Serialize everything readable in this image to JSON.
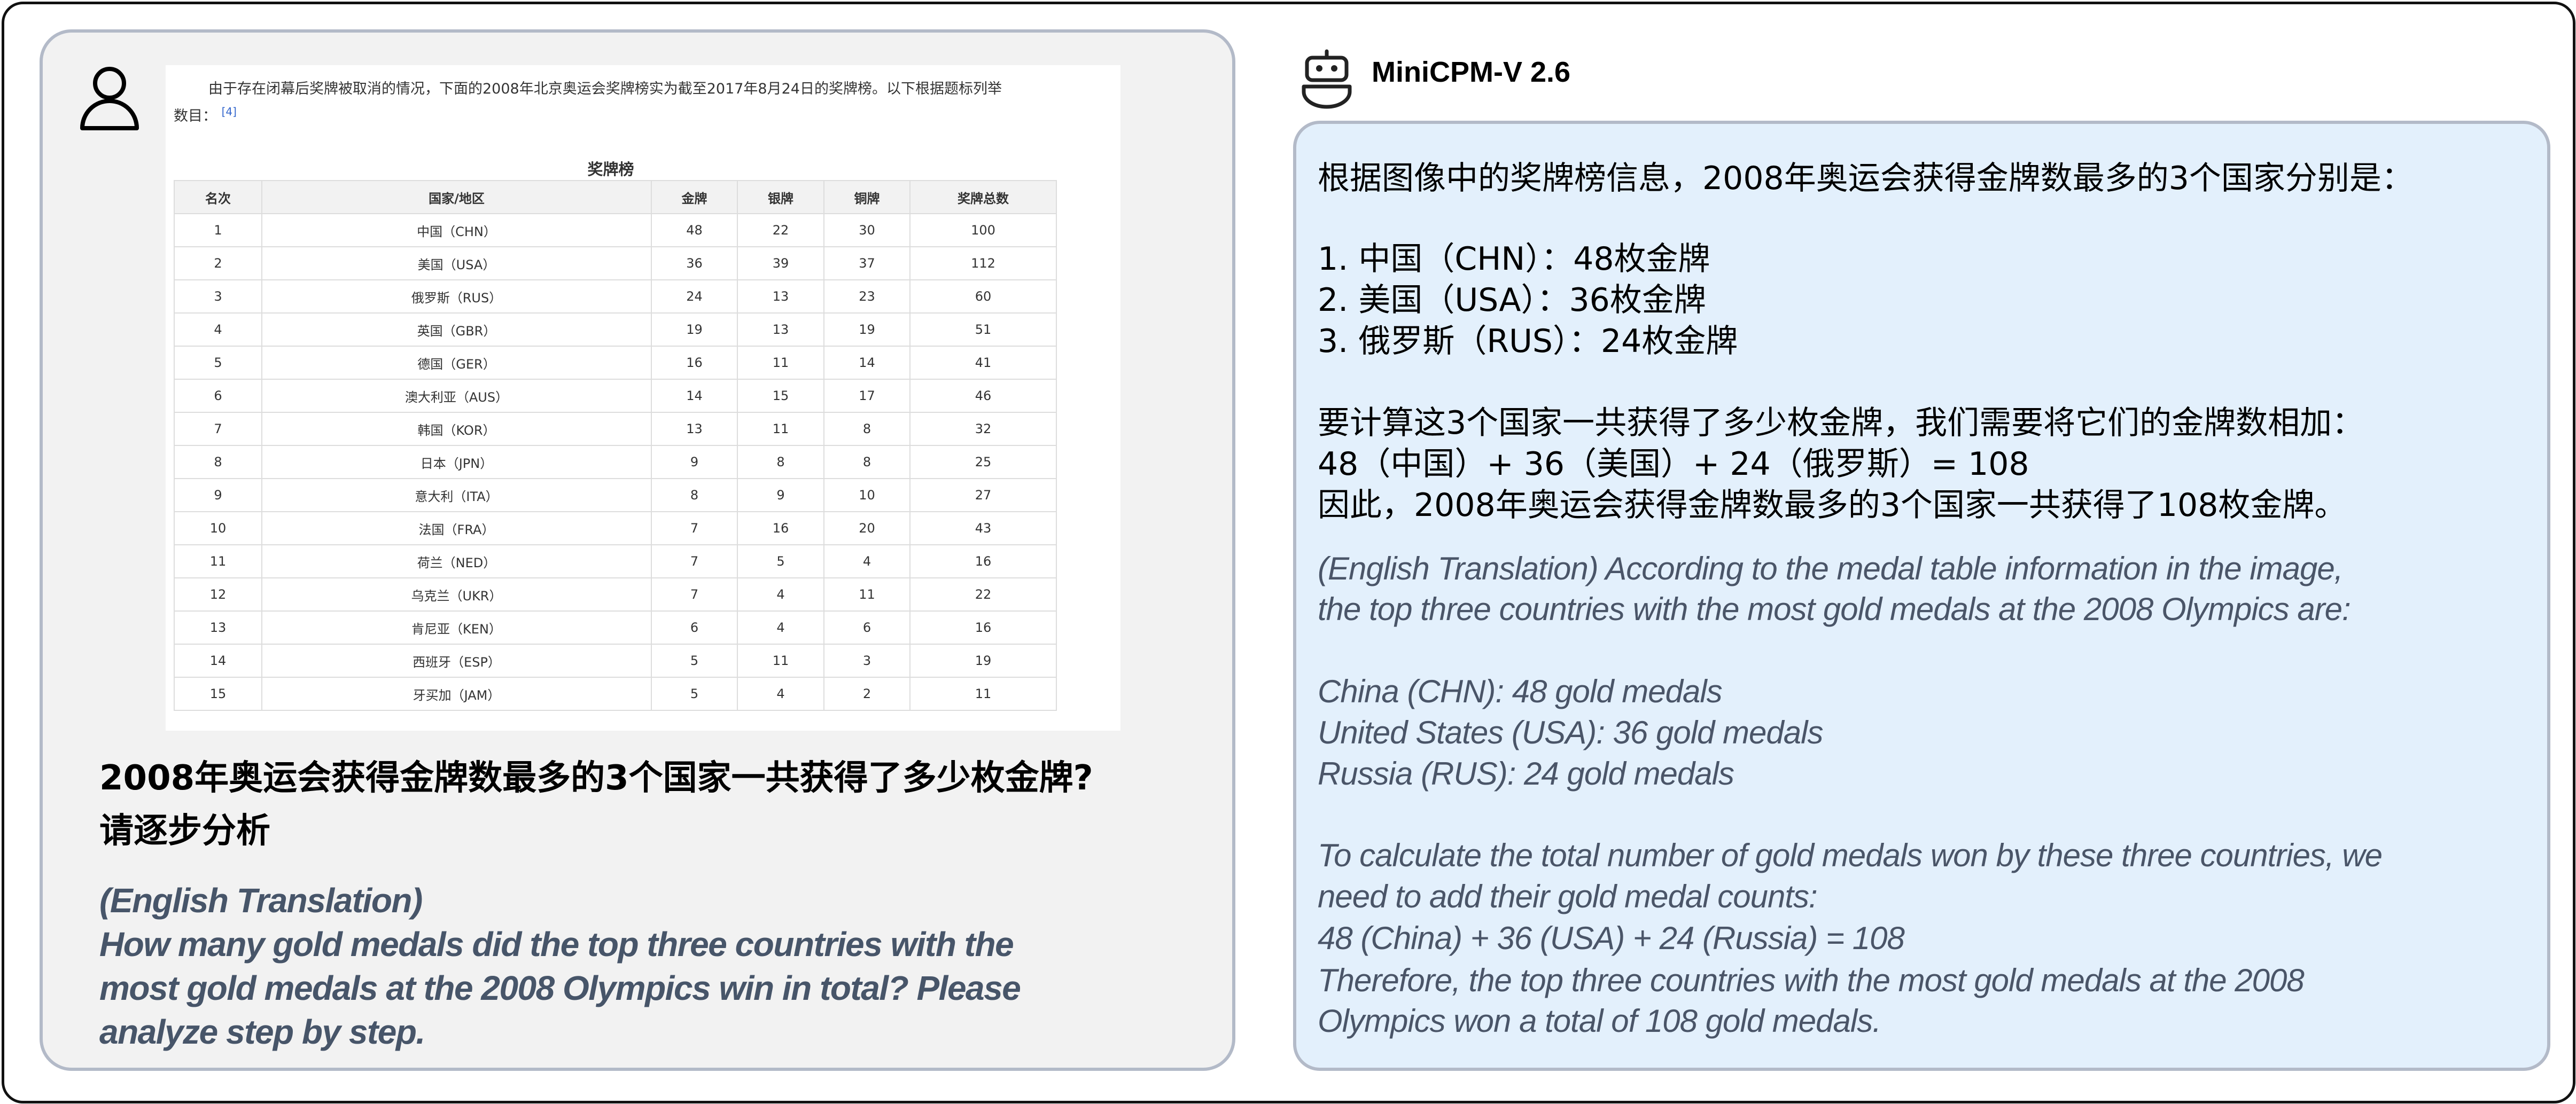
{
  "user": {
    "icon": "user-icon",
    "screenshot": {
      "intro_line1": "由于存在闭幕后奖牌被取消的情况，下面的2008年北京奥运会奖牌榜实为截至2017年8月24日的奖牌榜。以下根据题标列举",
      "intro_line2": "数目：",
      "citation": "[4]",
      "table_title": "奖牌榜",
      "headers": [
        "名次",
        "国家/地区",
        "金牌",
        "银牌",
        "铜牌",
        "奖牌总数"
      ],
      "rows": [
        [
          "1",
          "中国（CHN）",
          "48",
          "22",
          "30",
          "100"
        ],
        [
          "2",
          "美国（USA）",
          "36",
          "39",
          "37",
          "112"
        ],
        [
          "3",
          "俄罗斯（RUS）",
          "24",
          "13",
          "23",
          "60"
        ],
        [
          "4",
          "英国（GBR）",
          "19",
          "13",
          "19",
          "51"
        ],
        [
          "5",
          "德国（GER）",
          "16",
          "11",
          "14",
          "41"
        ],
        [
          "6",
          "澳大利亚（AUS）",
          "14",
          "15",
          "17",
          "46"
        ],
        [
          "7",
          "韩国（KOR）",
          "13",
          "11",
          "8",
          "32"
        ],
        [
          "8",
          "日本（JPN）",
          "9",
          "8",
          "8",
          "25"
        ],
        [
          "9",
          "意大利（ITA）",
          "8",
          "9",
          "10",
          "27"
        ],
        [
          "10",
          "法国（FRA）",
          "7",
          "16",
          "20",
          "43"
        ],
        [
          "11",
          "荷兰（NED）",
          "7",
          "5",
          "4",
          "16"
        ],
        [
          "12",
          "乌克兰（UKR）",
          "7",
          "4",
          "11",
          "22"
        ],
        [
          "13",
          "肯尼亚（KEN）",
          "6",
          "4",
          "6",
          "16"
        ],
        [
          "14",
          "西班牙（ESP）",
          "5",
          "11",
          "3",
          "19"
        ],
        [
          "15",
          "牙买加（JAM）",
          "5",
          "4",
          "2",
          "11"
        ]
      ]
    },
    "question_cn": [
      "2008年奥运会获得金牌数最多的3个国家一共获得了多少枚金牌?",
      "请逐步分析"
    ],
    "question_en": [
      "(English Translation)",
      "How many gold medals did the top three countries with the",
      "most gold medals at the 2008 Olympics win in total? Please",
      "analyze step by step."
    ]
  },
  "assistant": {
    "icon": "robot-icon",
    "name": "MiniCPM-V 2.6",
    "answer_cn": [
      "根据图像中的奖牌榜信息，2008年奥运会获得金牌数最多的3个国家分别是：",
      "1. 中国（CHN）：48枚金牌",
      "2. 美国（USA）：36枚金牌",
      "3. 俄罗斯（RUS）：24枚金牌",
      "要计算这3个国家一共获得了多少枚金牌，我们需要将它们的金牌数相加：",
      "48（中国）+ 36（美国）+ 24（俄罗斯）= 108",
      "因此，2008年奥运会获得金牌数最多的3个国家一共获得了108枚金牌。"
    ],
    "answer_en": [
      "(English Translation) According to the medal table information in the image,",
      "the top three countries with the most gold medals at the 2008 Olympics are:",
      "China (CHN): 48 gold medals",
      "United States (USA): 36 gold medals",
      "Russia (RUS): 24 gold medals",
      "To calculate the total number of gold medals won by these three countries, we",
      "need to add their gold medal counts:",
      "48 (China) + 36 (USA) + 24 (Russia) = 108",
      "Therefore, the top three countries with the most gold medals at the 2008",
      "Olympics won a total of 108 gold medals."
    ]
  },
  "colors": {
    "user_panel_bg": "#f2f2f2",
    "assistant_panel_bg": "#e3f0fc",
    "panel_border": "#b3bac8",
    "translation_text": "#4a5568"
  }
}
